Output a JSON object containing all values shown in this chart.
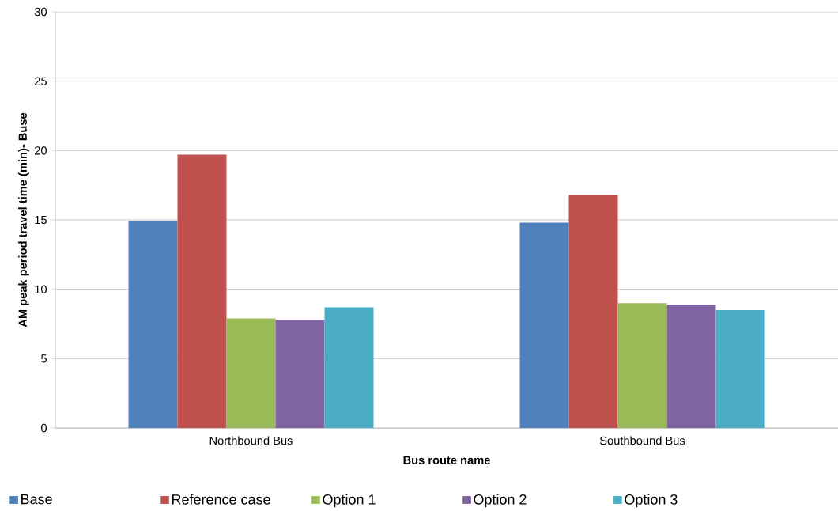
{
  "chart_data": {
    "type": "bar",
    "xlabel": "Bus route name",
    "ylabel": "AM peak period travel time (min)- Buse",
    "categories": [
      "Northbound Bus",
      "Southbound Bus"
    ],
    "series": [
      {
        "name": "Base",
        "color": "#4f81bd",
        "values": [
          14.9,
          14.8
        ]
      },
      {
        "name": "Reference case",
        "color": "#c0504d",
        "values": [
          19.7,
          16.8
        ]
      },
      {
        "name": "Option 1",
        "color": "#9bbb59",
        "values": [
          7.9,
          9.0
        ]
      },
      {
        "name": "Option 2",
        "color": "#8064a2",
        "values": [
          7.8,
          8.9
        ]
      },
      {
        "name": "Option 3",
        "color": "#4bacc6",
        "values": [
          8.7,
          8.5
        ]
      }
    ],
    "ylim": [
      0,
      30
    ],
    "yticks": [
      0,
      5,
      10,
      15,
      20,
      25,
      30
    ],
    "grid": "y",
    "legend": "bottom"
  }
}
